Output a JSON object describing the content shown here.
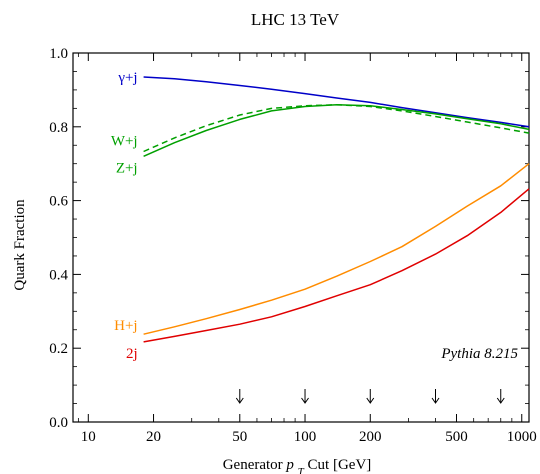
{
  "chart_data": {
    "type": "line",
    "title": "LHC 13 TeV",
    "xlabel": "Generator p_T Cut [GeV]",
    "ylabel": "Quark Fraction",
    "x_scale": "log",
    "xlim": [
      8.5,
      1080
    ],
    "ylim": [
      0.0,
      1.0
    ],
    "x_ticks": [
      "10",
      "20",
      "50",
      "100",
      "200",
      "500",
      "1000"
    ],
    "y_ticks": [
      "0.0",
      "0.2",
      "0.4",
      "0.6",
      "0.8",
      "1.0"
    ],
    "annotation": "Pythia 8.215",
    "arrows_at": [
      50,
      100,
      200,
      400,
      800
    ],
    "series": [
      {
        "name": "γ+j",
        "color": "#0000c8",
        "dash": "solid",
        "x": [
          18,
          25,
          35,
          50,
          70,
          100,
          140,
          200,
          280,
          400,
          560,
          800,
          1100
        ],
        "y": [
          0.935,
          0.93,
          0.922,
          0.912,
          0.902,
          0.89,
          0.878,
          0.866,
          0.852,
          0.838,
          0.825,
          0.812,
          0.8
        ]
      },
      {
        "name": "W+j",
        "color": "#00a000",
        "dash": "dashed",
        "x": [
          18,
          25,
          35,
          50,
          70,
          100,
          140,
          200,
          280,
          400,
          560,
          800,
          1100
        ],
        "y": [
          0.733,
          0.77,
          0.803,
          0.832,
          0.85,
          0.857,
          0.86,
          0.855,
          0.843,
          0.828,
          0.813,
          0.797,
          0.783
        ]
      },
      {
        "name": "Z+j",
        "color": "#00a000",
        "dash": "solid",
        "x": [
          18,
          25,
          35,
          50,
          70,
          100,
          140,
          200,
          280,
          400,
          560,
          800,
          1100
        ],
        "y": [
          0.72,
          0.757,
          0.79,
          0.82,
          0.843,
          0.855,
          0.86,
          0.857,
          0.847,
          0.835,
          0.822,
          0.808,
          0.793
        ]
      },
      {
        "name": "H+j",
        "color": "#ff8c00",
        "dash": "solid",
        "x": [
          18,
          25,
          35,
          50,
          70,
          100,
          140,
          200,
          280,
          400,
          560,
          800,
          1100
        ],
        "y": [
          0.238,
          0.258,
          0.28,
          0.305,
          0.33,
          0.36,
          0.395,
          0.435,
          0.475,
          0.53,
          0.585,
          0.64,
          0.7
        ]
      },
      {
        "name": "2j",
        "color": "#e00000",
        "dash": "solid",
        "x": [
          18,
          25,
          35,
          50,
          70,
          100,
          140,
          200,
          280,
          400,
          560,
          800,
          1100
        ],
        "y": [
          0.217,
          0.232,
          0.248,
          0.265,
          0.285,
          0.313,
          0.342,
          0.372,
          0.41,
          0.455,
          0.505,
          0.568,
          0.632
        ]
      }
    ]
  }
}
